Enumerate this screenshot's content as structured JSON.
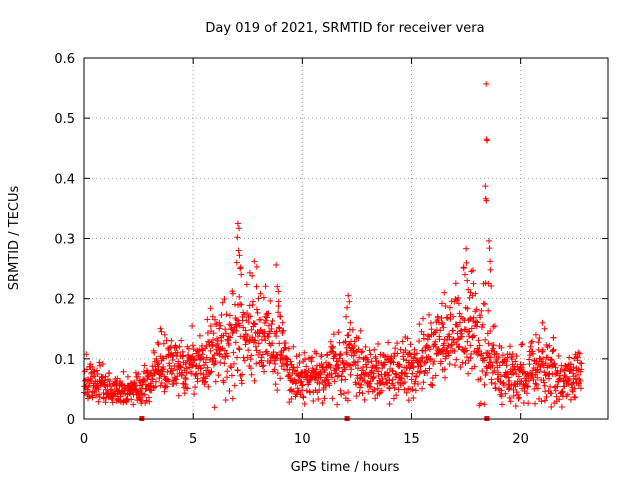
{
  "chart_data": {
    "type": "scatter",
    "title": "Day 019 of 2021, SRMTID for receiver vera",
    "xlabel": "GPS time / hours",
    "ylabel": "SRMTID / TECUs",
    "xlim": [
      0,
      24
    ],
    "ylim": [
      0,
      0.6
    ],
    "x_ticks": [
      0,
      5,
      10,
      15,
      20
    ],
    "x_tick_labels": [
      "0",
      "5",
      "10",
      "15",
      "20"
    ],
    "y_ticks": [
      0,
      0.1,
      0.2,
      0.3,
      0.4,
      0.5,
      0.6
    ],
    "y_tick_labels": [
      "0",
      "0.1",
      "0.2",
      "0.3",
      "0.4",
      "0.5",
      "0.6"
    ],
    "grid": true,
    "marker": "+",
    "color": "#ff0000",
    "gap_markers_x": [
      2.65,
      12.05,
      18.45
    ],
    "envelope": [
      {
        "t": 0.0,
        "base": 0.065,
        "spread": 0.025
      },
      {
        "t": 1.0,
        "base": 0.055,
        "spread": 0.02
      },
      {
        "t": 2.0,
        "base": 0.045,
        "spread": 0.018
      },
      {
        "t": 3.0,
        "base": 0.06,
        "spread": 0.025
      },
      {
        "t": 3.5,
        "base": 0.09,
        "spread": 0.035
      },
      {
        "t": 4.5,
        "base": 0.085,
        "spread": 0.035
      },
      {
        "t": 5.5,
        "base": 0.1,
        "spread": 0.045
      },
      {
        "t": 6.5,
        "base": 0.11,
        "spread": 0.06
      },
      {
        "t": 7.0,
        "base": 0.14,
        "spread": 0.08
      },
      {
        "t": 7.8,
        "base": 0.15,
        "spread": 0.07
      },
      {
        "t": 8.5,
        "base": 0.13,
        "spread": 0.05
      },
      {
        "t": 9.0,
        "base": 0.12,
        "spread": 0.05
      },
      {
        "t": 9.5,
        "base": 0.07,
        "spread": 0.03
      },
      {
        "t": 11.0,
        "base": 0.075,
        "spread": 0.035
      },
      {
        "t": 12.0,
        "base": 0.1,
        "spread": 0.05
      },
      {
        "t": 13.0,
        "base": 0.08,
        "spread": 0.035
      },
      {
        "t": 14.0,
        "base": 0.075,
        "spread": 0.03
      },
      {
        "t": 15.0,
        "base": 0.09,
        "spread": 0.035
      },
      {
        "t": 16.0,
        "base": 0.11,
        "spread": 0.045
      },
      {
        "t": 17.0,
        "base": 0.14,
        "spread": 0.06
      },
      {
        "t": 17.8,
        "base": 0.16,
        "spread": 0.07
      },
      {
        "t": 18.5,
        "base": 0.12,
        "spread": 0.08
      },
      {
        "t": 19.0,
        "base": 0.07,
        "spread": 0.035
      },
      {
        "t": 20.0,
        "base": 0.075,
        "spread": 0.035
      },
      {
        "t": 21.0,
        "base": 0.085,
        "spread": 0.04
      },
      {
        "t": 22.0,
        "base": 0.07,
        "spread": 0.03
      },
      {
        "t": 22.8,
        "base": 0.08,
        "spread": 0.035
      }
    ],
    "series": [
      {
        "name": "SRMTID",
        "points": [
          [
            18.42,
            0.557
          ],
          [
            18.44,
            0.465
          ],
          [
            18.46,
            0.463
          ],
          [
            18.38,
            0.387
          ],
          [
            18.4,
            0.366
          ],
          [
            18.43,
            0.363
          ],
          [
            18.55,
            0.296
          ],
          [
            18.57,
            0.284
          ],
          [
            18.6,
            0.262
          ],
          [
            18.62,
            0.248
          ],
          [
            18.65,
            0.221
          ],
          [
            18.52,
            0.225
          ],
          [
            7.05,
            0.325
          ],
          [
            7.1,
            0.317
          ],
          [
            7.02,
            0.302
          ],
          [
            7.08,
            0.28
          ],
          [
            7.12,
            0.272
          ],
          [
            7.0,
            0.26
          ],
          [
            7.15,
            0.25
          ],
          [
            7.2,
            0.24
          ],
          [
            7.6,
            0.243
          ],
          [
            7.7,
            0.238
          ],
          [
            7.8,
            0.262
          ],
          [
            7.9,
            0.22
          ],
          [
            8.8,
            0.256
          ],
          [
            8.85,
            0.22
          ],
          [
            8.9,
            0.212
          ],
          [
            9.0,
            0.17
          ],
          [
            9.1,
            0.16
          ],
          [
            17.5,
            0.283
          ],
          [
            17.45,
            0.24
          ],
          [
            17.55,
            0.23
          ],
          [
            17.6,
            0.215
          ],
          [
            17.7,
            0.21
          ],
          [
            17.8,
            0.205
          ],
          [
            16.5,
            0.21
          ],
          [
            16.2,
            0.17
          ],
          [
            16.4,
            0.16
          ],
          [
            12.1,
            0.205
          ],
          [
            12.15,
            0.195
          ],
          [
            12.05,
            0.185
          ],
          [
            12.0,
            0.17
          ],
          [
            12.2,
            0.16
          ],
          [
            5.8,
            0.184
          ],
          [
            5.9,
            0.17
          ],
          [
            6.0,
            0.165
          ],
          [
            6.2,
            0.16
          ],
          [
            8.4,
            0.175
          ],
          [
            8.3,
            0.17
          ],
          [
            8.1,
            0.165
          ],
          [
            21.0,
            0.16
          ],
          [
            21.1,
            0.15
          ],
          [
            20.7,
            0.14
          ],
          [
            21.5,
            0.135
          ],
          [
            3.5,
            0.15
          ],
          [
            3.55,
            0.145
          ],
          [
            3.7,
            0.14
          ],
          [
            4.0,
            0.13
          ],
          [
            1.5,
            0.03
          ],
          [
            1.8,
            0.028
          ],
          [
            21.4,
            0.02
          ],
          [
            10.5,
            0.03
          ],
          [
            9.4,
            0.028
          ],
          [
            14.0,
            0.025
          ],
          [
            2.0,
            0.032
          ],
          [
            19.5,
            0.035
          ],
          [
            22.3,
            0.032
          ],
          [
            0.9,
            0.036
          ]
        ]
      }
    ]
  }
}
